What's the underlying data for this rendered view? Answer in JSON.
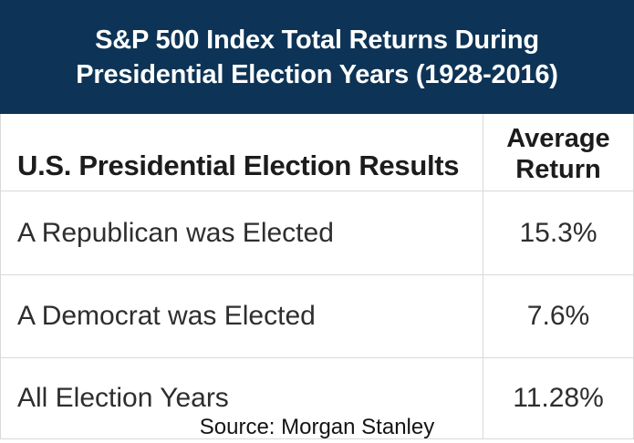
{
  "title": {
    "line1": "S&P 500 Index Total Returns During",
    "line2": "Presidential Election Years (1928-2016)"
  },
  "table": {
    "columns": [
      {
        "label": "U.S. Presidential Election Results"
      },
      {
        "label": "Average Return"
      }
    ],
    "rows": [
      {
        "label": "A Republican was Elected",
        "value": "15.3%"
      },
      {
        "label": "A Democrat was Elected",
        "value": "7.6%"
      },
      {
        "label": "All Election Years",
        "value": "11.28%"
      }
    ]
  },
  "source": "Source: Morgan Stanley",
  "colors": {
    "banner_bg": "#0d3456",
    "banner_text": "#ffffff",
    "divider": "#d9d9d9",
    "heading_text": "#1c1c1c",
    "body_text": "#2e2e2e"
  },
  "chart_data": {
    "type": "table",
    "title": "S&P 500 Index Total Returns During Presidential Election Years (1928-2016)",
    "columns": [
      "U.S. Presidential Election Results",
      "Average Return"
    ],
    "rows": [
      [
        "A Republican was Elected",
        "15.3%"
      ],
      [
        "A Democrat was Elected",
        "7.6%"
      ],
      [
        "All Election Years",
        "11.28%"
      ]
    ],
    "categories": [
      "A Republican was Elected",
      "A Democrat was Elected",
      "All Election Years"
    ],
    "values": [
      15.3,
      7.6,
      11.28
    ],
    "value_unit": "%",
    "source": "Source: Morgan Stanley",
    "legend_position": "none",
    "grid": false
  }
}
